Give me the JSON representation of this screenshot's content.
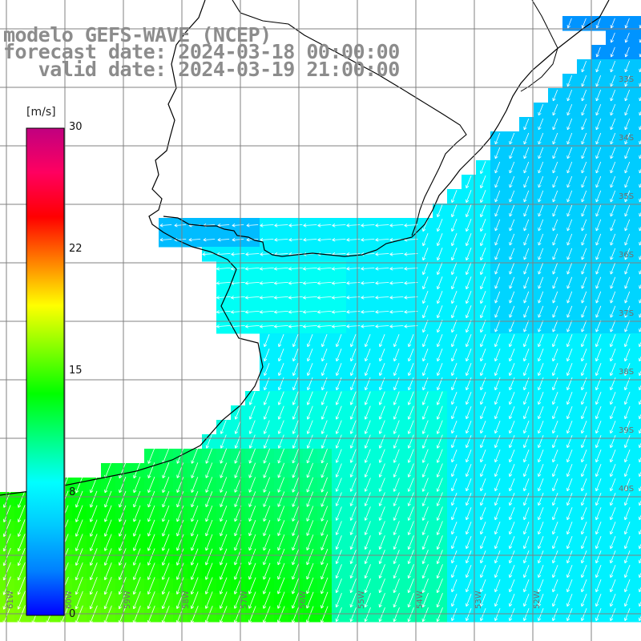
{
  "header": {
    "line1": "modelo GEFS-WAVE (NCEP)",
    "line2": "forecast date: 2024-03-18 00:00:00",
    "line3": "   valid date: 2024-03-19 21:00:00"
  },
  "colorbar": {
    "unit": "[m/s]",
    "ticks": [
      "30",
      "22",
      "15",
      "8",
      "0"
    ],
    "colors": [
      "#0000ff",
      "#0080ff",
      "#00c8ff",
      "#00ffff",
      "#00ff80",
      "#00ff00",
      "#80ff00",
      "#ffff00",
      "#ff8000",
      "#ff0000",
      "#ff0060",
      "#c00080"
    ]
  },
  "grid": {
    "lat_labels": [
      "33S",
      "34S",
      "35S",
      "36S",
      "37S",
      "38S",
      "39S",
      "40S"
    ],
    "lon_labels": [
      "61W",
      "60W",
      "59W",
      "58W",
      "57W",
      "56W",
      "55W",
      "54W",
      "53W",
      "52W"
    ]
  },
  "colors": {
    "land": "#ffffff",
    "grid": "#808080",
    "coast": "#000000",
    "arrow": "#ffffff"
  }
}
